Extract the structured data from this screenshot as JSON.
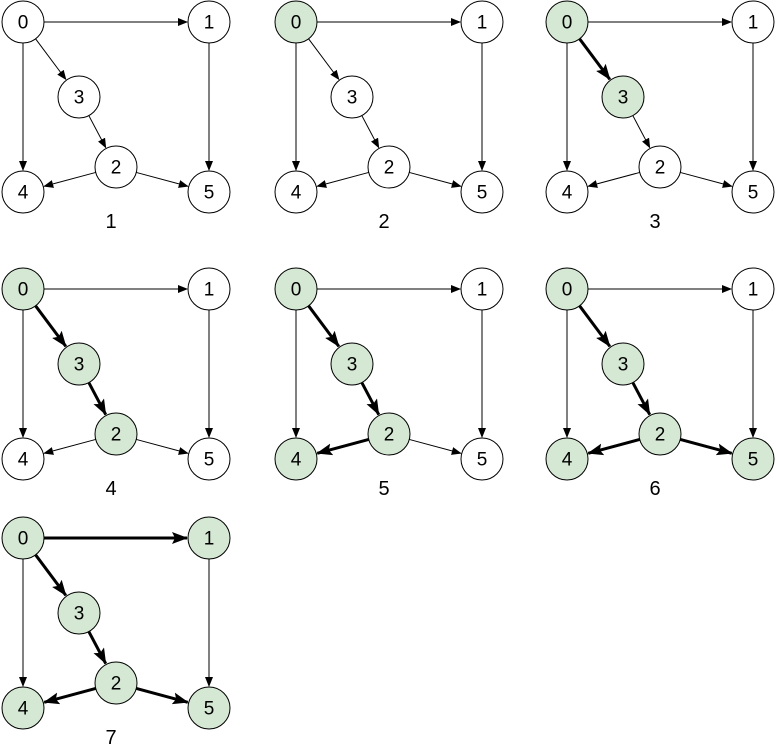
{
  "colors": {
    "visited_fill": "#d5e8d4",
    "visited_stroke": "#82b366",
    "unvisited_fill": "#ffffff",
    "unvisited_stroke": "#000000",
    "edge": "#000000"
  },
  "graph": {
    "nodes": [
      {
        "id": 0,
        "label": "0"
      },
      {
        "id": 1,
        "label": "1"
      },
      {
        "id": 2,
        "label": "2"
      },
      {
        "id": 3,
        "label": "3"
      },
      {
        "id": 4,
        "label": "4"
      },
      {
        "id": 5,
        "label": "5"
      }
    ],
    "edges": [
      {
        "from": 0,
        "to": 1
      },
      {
        "from": 0,
        "to": 3
      },
      {
        "from": 0,
        "to": 4
      },
      {
        "from": 3,
        "to": 2
      },
      {
        "from": 2,
        "to": 4
      },
      {
        "from": 2,
        "to": 5
      },
      {
        "from": 1,
        "to": 5
      }
    ]
  },
  "steps": [
    {
      "label": "1",
      "visited": [],
      "bold_edges": []
    },
    {
      "label": "2",
      "visited": [
        0
      ],
      "bold_edges": []
    },
    {
      "label": "3",
      "visited": [
        0,
        3
      ],
      "bold_edges": [
        [
          0,
          3
        ]
      ]
    },
    {
      "label": "4",
      "visited": [
        0,
        3,
        2
      ],
      "bold_edges": [
        [
          0,
          3
        ],
        [
          3,
          2
        ]
      ]
    },
    {
      "label": "5",
      "visited": [
        0,
        3,
        2,
        4
      ],
      "bold_edges": [
        [
          0,
          3
        ],
        [
          3,
          2
        ],
        [
          2,
          4
        ]
      ]
    },
    {
      "label": "6",
      "visited": [
        0,
        3,
        2,
        4,
        5
      ],
      "bold_edges": [
        [
          0,
          3
        ],
        [
          3,
          2
        ],
        [
          2,
          4
        ],
        [
          2,
          5
        ]
      ]
    },
    {
      "label": "7",
      "visited": [
        0,
        3,
        2,
        4,
        5,
        1
      ],
      "bold_edges": [
        [
          0,
          3
        ],
        [
          3,
          2
        ],
        [
          2,
          4
        ],
        [
          2,
          5
        ],
        [
          0,
          1
        ]
      ]
    }
  ]
}
